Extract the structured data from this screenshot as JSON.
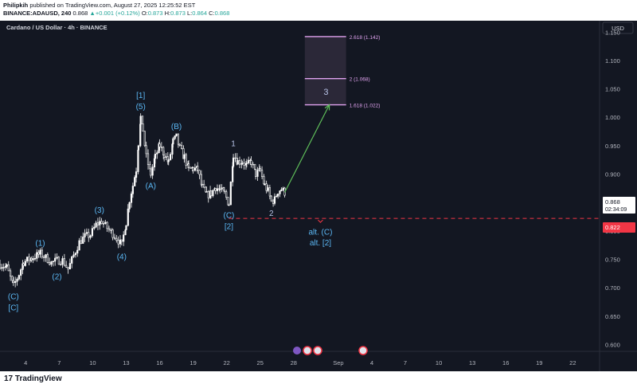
{
  "header": {
    "author": "Philipkih",
    "published": " published on TradingView.com, August 27, 2025 12:25:52 EST",
    "symbol": "BINANCE:ADAUSD, 240",
    "price": "0.868",
    "change_arrow": "▲",
    "change": "+0.001 (+0.12%)",
    "o_label": "O:",
    "o_value": "0.873",
    "h_label": "H:",
    "h_value": "0.873",
    "l_label": "L:",
    "l_value": "0.864",
    "c_label": "C:",
    "c_value": "0.868"
  },
  "chart_title": "Cardano / US Dollar · 4h · BINANCE",
  "currency": "USD",
  "price_badge": {
    "price": "0.868",
    "countdown": "02:34:09"
  },
  "level_badge": "0.822",
  "footer": {
    "logo_mark": "17",
    "logo_text": "TradingView"
  },
  "colors": {
    "background": "#131722",
    "candle_up": "#ffffff",
    "candle_down": "#ffffff",
    "wave_label": "#5bb8f5",
    "wave_minor": "#b7c2e6",
    "fib_line": "#e1a3f0",
    "target_box": "#2b2838",
    "projection": "#5fbe5a",
    "invalidation": "#f23645",
    "axis_text": "#b2b5be"
  },
  "chart_data": {
    "type": "candlestick",
    "symbol": "ADAUSD",
    "timeframe": "4h",
    "y_ticks": [
      "1.150",
      "1.100",
      "1.050",
      "1.000",
      "0.950",
      "0.900",
      "0.850",
      "0.800",
      "0.750",
      "0.700",
      "0.650",
      "0.600"
    ],
    "ylim": [
      0.588,
      1.17
    ],
    "x_ticks": [
      "4",
      "7",
      "10",
      "13",
      "16",
      "19",
      "22",
      "25",
      "28",
      "Sep",
      "4",
      "7",
      "10",
      "13",
      "16",
      "19",
      "22"
    ],
    "x_tick_values": [
      4,
      7,
      10,
      13,
      16,
      19,
      22,
      25,
      28,
      32,
      35,
      38,
      41,
      44,
      47,
      50,
      53
    ],
    "xlim": [
      1.7,
      55.4
    ],
    "price_path": [
      [
        1.7,
        0.741
      ],
      [
        2.3,
        0.736
      ],
      [
        2.9,
        0.703
      ],
      [
        3.4,
        0.724
      ],
      [
        3.8,
        0.745
      ],
      [
        4.5,
        0.752
      ],
      [
        5.3,
        0.76
      ],
      [
        5.8,
        0.753
      ],
      [
        6.3,
        0.744
      ],
      [
        6.8,
        0.748
      ],
      [
        7.3,
        0.748
      ],
      [
        7.8,
        0.733
      ],
      [
        8.3,
        0.757
      ],
      [
        8.8,
        0.78
      ],
      [
        9.3,
        0.79
      ],
      [
        9.8,
        0.793
      ],
      [
        10.3,
        0.811
      ],
      [
        10.8,
        0.817
      ],
      [
        11.3,
        0.805
      ],
      [
        11.8,
        0.795
      ],
      [
        12.3,
        0.783
      ],
      [
        12.6,
        0.775
      ],
      [
        13.0,
        0.815
      ],
      [
        13.3,
        0.855
      ],
      [
        13.6,
        0.88
      ],
      [
        13.9,
        0.908
      ],
      [
        14.1,
        0.955
      ],
      [
        14.3,
        1.0
      ],
      [
        14.5,
        0.978
      ],
      [
        14.8,
        0.93
      ],
      [
        15.2,
        0.9
      ],
      [
        15.6,
        0.93
      ],
      [
        16.0,
        0.95
      ],
      [
        16.4,
        0.935
      ],
      [
        16.8,
        0.92
      ],
      [
        17.2,
        0.958
      ],
      [
        17.5,
        0.965
      ],
      [
        17.8,
        0.945
      ],
      [
        18.2,
        0.93
      ],
      [
        18.6,
        0.908
      ],
      [
        19.0,
        0.91
      ],
      [
        19.4,
        0.908
      ],
      [
        19.8,
        0.877
      ],
      [
        20.2,
        0.863
      ],
      [
        20.6,
        0.866
      ],
      [
        21.0,
        0.877
      ],
      [
        21.4,
        0.872
      ],
      [
        21.8,
        0.866
      ],
      [
        22.2,
        0.848
      ],
      [
        22.6,
        0.935
      ],
      [
        23.0,
        0.922
      ],
      [
        23.4,
        0.922
      ],
      [
        23.8,
        0.915
      ],
      [
        24.2,
        0.922
      ],
      [
        24.6,
        0.9
      ],
      [
        25.0,
        0.906
      ],
      [
        25.4,
        0.88
      ],
      [
        25.7,
        0.87
      ],
      [
        26.0,
        0.852
      ],
      [
        26.3,
        0.855
      ],
      [
        26.6,
        0.87
      ],
      [
        26.9,
        0.874
      ],
      [
        27.2,
        0.868
      ]
    ],
    "wave_labels": [
      {
        "text": "(C)",
        "x": 2.9,
        "y": 0.705,
        "pos": "below"
      },
      {
        "text": "[C]",
        "x": 2.9,
        "y": 0.705,
        "pos": "below2"
      },
      {
        "text": "(1)",
        "x": 5.3,
        "y": 0.76,
        "pos": "above"
      },
      {
        "text": "(2)",
        "x": 6.8,
        "y": 0.74,
        "pos": "below"
      },
      {
        "text": "(3)",
        "x": 10.6,
        "y": 0.818,
        "pos": "above"
      },
      {
        "text": "(4)",
        "x": 12.6,
        "y": 0.775,
        "pos": "below"
      },
      {
        "text": "[1]",
        "x": 14.3,
        "y": 1.0,
        "pos": "above2"
      },
      {
        "text": "(5)",
        "x": 14.3,
        "y": 1.0,
        "pos": "above"
      },
      {
        "text": "(A)",
        "x": 15.2,
        "y": 0.9,
        "pos": "below"
      },
      {
        "text": "(B)",
        "x": 17.5,
        "y": 0.965,
        "pos": "above"
      },
      {
        "text": "(C)",
        "x": 22.2,
        "y": 0.848,
        "pos": "below"
      },
      {
        "text": "[2]",
        "x": 22.2,
        "y": 0.848,
        "pos": "below2"
      },
      {
        "text": "1",
        "x": 22.6,
        "y": 0.935,
        "pos": "above"
      },
      {
        "text": "2",
        "x": 26.0,
        "y": 0.852,
        "pos": "below"
      },
      {
        "text": "3",
        "x": 30.9,
        "y": 1.045,
        "pos": "center"
      },
      {
        "text": "alt. (C)",
        "x": 30.4,
        "y": 0.799,
        "pos": "center"
      },
      {
        "text": "alt. [2]",
        "x": 30.4,
        "y": 0.78,
        "pos": "center"
      }
    ],
    "fib_levels": [
      {
        "ratio": "2.618",
        "price": 1.142,
        "label": "2.618 (1.142)"
      },
      {
        "ratio": "2",
        "price": 1.068,
        "label": "2 (1.068)"
      },
      {
        "ratio": "1.618",
        "price": 1.022,
        "label": "1.618 (1.022)"
      }
    ],
    "target_box": {
      "x_start": 29.0,
      "x_end": 32.7,
      "y_top": 1.142,
      "y_bottom": 1.022
    },
    "projection": {
      "from": [
        27.2,
        0.868
      ],
      "to": [
        31.2,
        1.022
      ]
    },
    "invalidation": {
      "price": 0.822,
      "x_start": 22.2
    }
  }
}
